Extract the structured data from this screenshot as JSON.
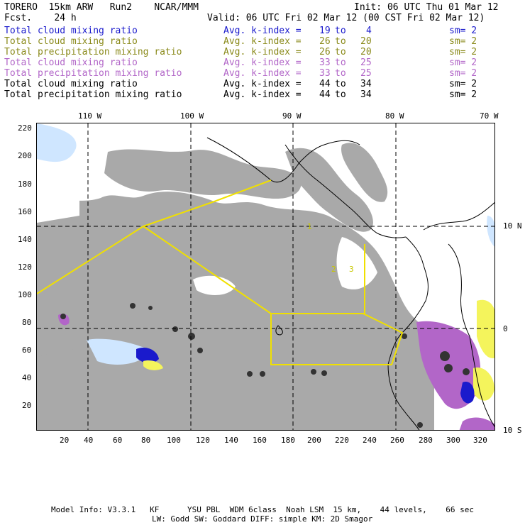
{
  "header": {
    "model": "TORERO  15km ARW   Run2    NCAR/MMM",
    "init": "Init: 06 UTC Thu 01 Mar 12",
    "fcst": "Fcst.    24 h",
    "valid": "Valid: 06 UTC Fri 02 Mar 12 (00 CST Fri 02 Mar 12)"
  },
  "legend": [
    {
      "field": "Total cloud mixing ratio",
      "kindex": "Avg. k-index =",
      "from": "19",
      "to": "to",
      "upto": "4",
      "sm": "sm= 2",
      "color": "#1a1acc"
    },
    {
      "field": "Total cloud mixing ratio",
      "kindex": "Avg. k-index =",
      "from": "26",
      "to": "to",
      "upto": "20",
      "sm": "sm= 2",
      "color": "#8a8a1a"
    },
    {
      "field": "Total precipitation mixing ratio",
      "kindex": "Avg. k-index =",
      "from": "26",
      "to": "to",
      "upto": "20",
      "sm": "sm= 2",
      "color": "#8a8a1a"
    },
    {
      "field": "Total cloud mixing ratio",
      "kindex": "Avg. k-index =",
      "from": "33",
      "to": "to",
      "upto": "25",
      "sm": "sm= 2",
      "color": "#b266c8"
    },
    {
      "field": "Total precipitation mixing ratio",
      "kindex": "Avg. k-index =",
      "from": "33",
      "to": "to",
      "upto": "25",
      "sm": "sm= 2",
      "color": "#b266c8"
    },
    {
      "field": "Total cloud mixing ratio",
      "kindex": "Avg. k-index =",
      "from": "44",
      "to": "to",
      "upto": "34",
      "sm": "sm= 2",
      "color": "#000000"
    },
    {
      "field": "Total precipitation mixing ratio",
      "kindex": "Avg. k-index =",
      "from": "44",
      "to": "to",
      "upto": "34",
      "sm": "sm= 2",
      "color": "#000000"
    }
  ],
  "map": {
    "lon_labels": [
      "110 W",
      "100 W",
      "90 W",
      "80 W",
      "70 W"
    ],
    "lat_labels": [
      "10 N",
      "0",
      "10 S"
    ],
    "x_ticks": [
      "20",
      "40",
      "60",
      "80",
      "100",
      "120",
      "140",
      "160",
      "180",
      "200",
      "220",
      "240",
      "260",
      "280",
      "300",
      "320"
    ],
    "y_ticks": [
      "220",
      "200",
      "180",
      "160",
      "140",
      "120",
      "100",
      "80",
      "60",
      "40",
      "20"
    ],
    "domain_labels": [
      "1",
      "2",
      "3"
    ]
  },
  "footer": {
    "line1": "Model Info: V3.3.1   KF      YSU PBL  WDM 6class  Noah LSM  15 km,    44 levels,    66 sec",
    "line2": "LW: Godd SW: Goddard DIFF: simple KM: 2D Smagor"
  }
}
